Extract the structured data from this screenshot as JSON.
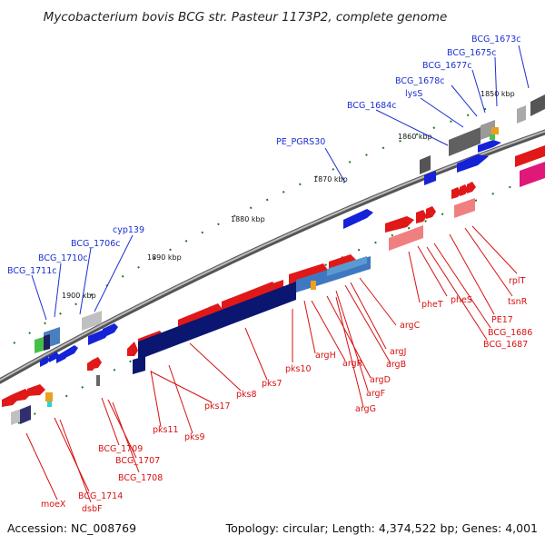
{
  "title": "Mycobacterium bovis BCG str. Pasteur 1173P2, complete genome",
  "footer": {
    "accession": "Accession: NC_008769",
    "summary": "Topology: circular; Length: 4,374,522 bp; Genes: 4,001"
  },
  "ruler_labels": [
    "1850 kbp",
    "1860 kbp",
    "1870 kbp",
    "1880 kbp",
    "1890 kbp",
    "1900 kbp"
  ],
  "colors": {
    "forward_gene": "#e01818",
    "reverse_gene": "#1522d8",
    "pks_block": "#0a1670",
    "tick": "#1e7a1e",
    "backbone": "#808080",
    "blue_label": "#1a2fd0",
    "red_label": "#d81010"
  },
  "blue_labels": [
    "BCG_1673c",
    "BCG_1675c",
    "BCG_1677c",
    "BCG_1678c",
    "lysS",
    "BCG_1684c",
    "PE_PGRS30",
    "cyp139",
    "BCG_1706c",
    "BCG_1710c",
    "BCG_1711c"
  ],
  "red_labels": [
    "rplT",
    "tsnR",
    "PE17",
    "BCG_1686",
    "BCG_1687",
    "pheS",
    "pheT",
    "argC",
    "argJ",
    "argB",
    "argH",
    "argR",
    "argD",
    "argF",
    "argG",
    "pks10",
    "pks7",
    "pks8",
    "pks17",
    "pks9",
    "pks11",
    "BCG_1709",
    "BCG_1707",
    "BCG_1708",
    "BCG_1714",
    "dsbF",
    "moeX"
  ]
}
